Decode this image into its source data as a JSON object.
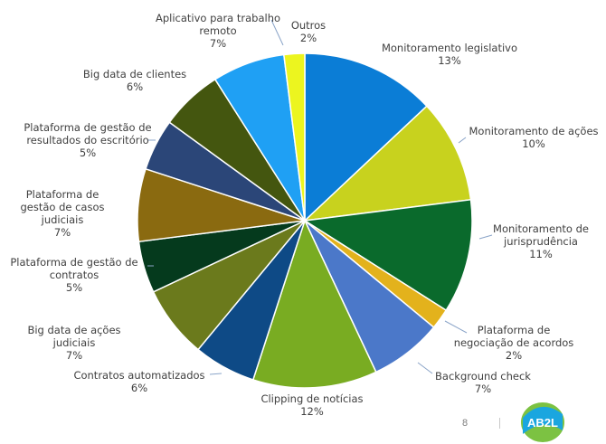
{
  "footer": {
    "page_number": "8",
    "logo_text": "AB2L"
  },
  "colors": {
    "logo_blue": "#1aa6df",
    "logo_green": "#7cc242",
    "logo_text": "#1f4f82"
  },
  "chart_data": {
    "type": "pie",
    "title": "",
    "legend": "none",
    "start": "12 o'clock, clockwise",
    "slices": [
      {
        "lines": [
          "Monitoramento legislativo"
        ],
        "pct": "13%",
        "value": 13,
        "color": "#0b7dd6"
      },
      {
        "lines": [
          "Monitoramento de ações"
        ],
        "pct": "10%",
        "value": 10,
        "color": "#c8d21e"
      },
      {
        "lines": [
          "Monitoramento de",
          "jurisprudência"
        ],
        "pct": "11%",
        "value": 11,
        "color": "#0a6a2c"
      },
      {
        "lines": [
          "Plataforma de",
          "negociação de acordos"
        ],
        "pct": "2%",
        "value": 2,
        "color": "#e3b21c"
      },
      {
        "lines": [
          "Background check"
        ],
        "pct": "7%",
        "value": 7,
        "color": "#4b78c9"
      },
      {
        "lines": [
          "Clipping de notícias"
        ],
        "pct": "12%",
        "value": 12,
        "color": "#79ac22"
      },
      {
        "lines": [
          "Contratos automatizados"
        ],
        "pct": "6%",
        "value": 6,
        "color": "#0e4a86"
      },
      {
        "lines": [
          "Big data de ações",
          "judiciais"
        ],
        "pct": "7%",
        "value": 7,
        "color": "#6b7a1c"
      },
      {
        "lines": [
          "Plataforma de gestão de",
          "contratos"
        ],
        "pct": "5%",
        "value": 5,
        "color": "#053a1d"
      },
      {
        "lines": [
          "Plataforma de",
          "gestão de casos",
          "judiciais"
        ],
        "pct": "7%",
        "value": 7,
        "color": "#8a6a10"
      },
      {
        "lines": [
          "Plataforma de gestão de",
          "resultados do escritório"
        ],
        "pct": "5%",
        "value": 5,
        "color": "#2b4678"
      },
      {
        "lines": [
          "Big data de clientes"
        ],
        "pct": "6%",
        "value": 6,
        "color": "#44560f"
      },
      {
        "lines": [
          "Aplicativo para trabalho",
          "remoto"
        ],
        "pct": "7%",
        "value": 7,
        "color": "#1fa0f4"
      },
      {
        "lines": [
          "Outros"
        ],
        "pct": "2%",
        "value": 2,
        "color": "#ecf51f"
      }
    ]
  }
}
